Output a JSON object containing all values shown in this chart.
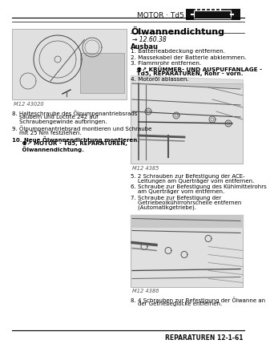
{
  "title": "MOTOR · Td5",
  "section_title": "Ölwannendichtung",
  "bg_color": "#ffffff",
  "footer_text": "REPARATUREN 12-1-61",
  "tool_ref": "→ 12.60.38",
  "subsection": "Ausbau",
  "ausbau_items": [
    {
      "num": "1.",
      "text": "Batterieabdeckung entfernen."
    },
    {
      "num": "2.",
      "text": "Massekabel der Batterie abklemmen."
    },
    {
      "num": "3.",
      "text": "Flammrohr entfernen.\n⚉↗ KRÜMMER- UND AUSPUFFANLAGE -\nTd5, REPARATUREN, Rohr - vorn."
    },
    {
      "num": "4.",
      "text": "Motoröl ablassen."
    }
  ],
  "left_items": [
    {
      "num": "8.",
      "text": "Halteschraube des Ölpumpenantriebsrads\nsäubern und Loctite 242 auf\nSchraubengewinde aufbringen."
    },
    {
      "num": "9.",
      "text": "Ölpumpenantriebsrad montieren und Schraube\nmit 25 Nm festziehen."
    },
    {
      "num": "10.",
      "text": "Neue Ölwannendichtung montieren.\n⚉↗ MOTOR - Td5, REPARATUREN,\nÖlwannendichtung."
    }
  ],
  "right_mid_items": [
    {
      "num": "5.",
      "text": "2 Schrauben zur Befestigung der ACE-\nLeitungen am Querträger vorn entfernen."
    },
    {
      "num": "6.",
      "text": "Schraube zur Befestigung des Kühlmittelrohrs\nam Querträger vorn entfernen."
    },
    {
      "num": "7.",
      "text": "Schraube zur Befestigung der\nGetriebeolkühlrrohrscheile entfernen\n(Automatikgetriebe)."
    }
  ],
  "right_bot_items": [
    {
      "num": "8.",
      "text": "4 Schrauben zur Befestigung der Ölwanne an\nder Getriebeglocke entfernen."
    }
  ],
  "img_label_top": "M12 43020",
  "img_label_mid": "M12 4385",
  "img_label_bot": "M12 4386"
}
